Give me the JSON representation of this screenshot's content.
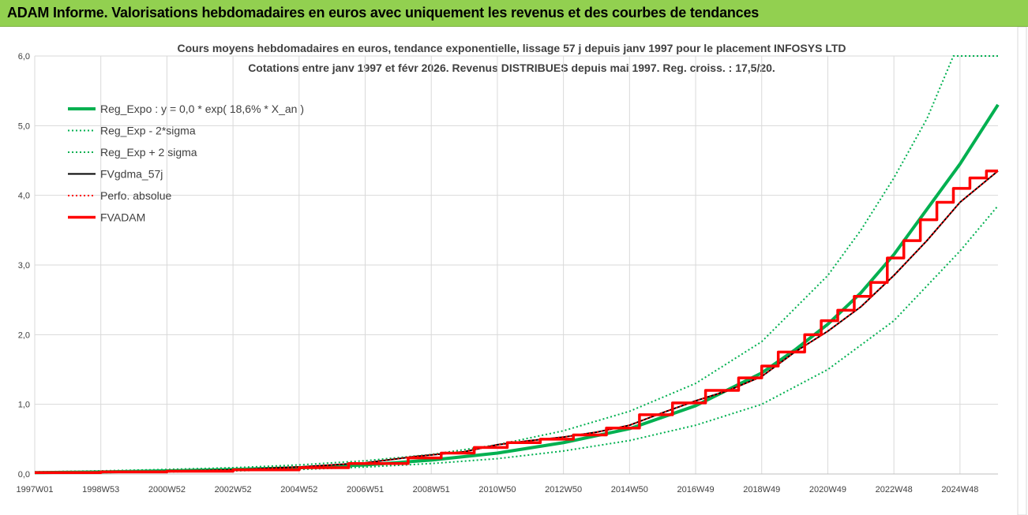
{
  "banner": {
    "title": "ADAM Informe. Valorisations hebdomadaires en euros avec uniquement les revenus et des courbes de tendances",
    "color": "#92d050"
  },
  "chart_data": {
    "type": "line",
    "title": "Cours moyens hebdomadaires en euros, tendance exponentielle, lissage 57 j depuis janv 1997 pour le placement INFOSYS LTD",
    "subtitle": "Cotations entre janv 1997 et févr 2026. Revenus DISTRIBUES depuis mai 1997. Reg. croiss. : 17,5/20.",
    "xlabel": "",
    "ylabel": "",
    "ylim": [
      0,
      6
    ],
    "yticks": [
      "0,0",
      "1,0",
      "2,0",
      "3,0",
      "4,0",
      "5,0",
      "6,0"
    ],
    "xlim": [
      1997.0,
      2026.15
    ],
    "xticks": [
      {
        "label": "1997W01",
        "x": 1997.0
      },
      {
        "label": "1998W53",
        "x": 1999.0
      },
      {
        "label": "2000W52",
        "x": 2001.0
      },
      {
        "label": "2002W52",
        "x": 2003.0
      },
      {
        "label": "2004W52",
        "x": 2005.0
      },
      {
        "label": "2006W51",
        "x": 2007.0
      },
      {
        "label": "2008W51",
        "x": 2009.0
      },
      {
        "label": "2010W50",
        "x": 2011.0
      },
      {
        "label": "2012W50",
        "x": 2013.0
      },
      {
        "label": "2014W50",
        "x": 2015.0
      },
      {
        "label": "2016W49",
        "x": 2017.0
      },
      {
        "label": "2018W49",
        "x": 2019.0
      },
      {
        "label": "2020W49",
        "x": 2021.0
      },
      {
        "label": "2022W48",
        "x": 2023.0
      },
      {
        "label": "2024W48",
        "x": 2025.0
      }
    ],
    "grid": true,
    "legend_position": "top-left",
    "series": [
      {
        "name": "Reg_Expo : y = 0,0 * exp( 18,6% * X_an )",
        "color": "#00b050",
        "style": "solid-thick",
        "x": [
          1997,
          1999,
          2001,
          2003,
          2005,
          2007,
          2009,
          2011,
          2013,
          2015,
          2017,
          2019,
          2020,
          2021,
          2022,
          2023,
          2024,
          2025,
          2026.15
        ],
        "y": [
          0.02,
          0.03,
          0.045,
          0.065,
          0.09,
          0.13,
          0.2,
          0.3,
          0.45,
          0.65,
          0.98,
          1.45,
          1.78,
          2.15,
          2.6,
          3.15,
          3.8,
          4.45,
          5.3
        ]
      },
      {
        "name": "Reg_Exp - 2*sigma",
        "color": "#00b050",
        "style": "dotted",
        "x": [
          1997,
          1999,
          2001,
          2003,
          2005,
          2007,
          2009,
          2011,
          2013,
          2015,
          2017,
          2019,
          2021,
          2023,
          2024,
          2025,
          2026.15
        ],
        "y": [
          0.015,
          0.02,
          0.03,
          0.045,
          0.065,
          0.1,
          0.15,
          0.22,
          0.33,
          0.48,
          0.7,
          1.0,
          1.5,
          2.2,
          2.7,
          3.2,
          3.85
        ]
      },
      {
        "name": "Reg_Exp + 2 sigma",
        "color": "#00b050",
        "style": "dotted",
        "x": [
          1997,
          1999,
          2001,
          2003,
          2005,
          2007,
          2009,
          2011,
          2013,
          2015,
          2017,
          2019,
          2021,
          2022,
          2023,
          2024,
          2024.8,
          2026.15
        ],
        "y": [
          0.03,
          0.045,
          0.065,
          0.09,
          0.13,
          0.19,
          0.28,
          0.42,
          0.62,
          0.9,
          1.3,
          1.9,
          2.85,
          3.5,
          4.25,
          5.1,
          6.0,
          6.0
        ]
      },
      {
        "name": "FVgdma_57j",
        "color": "#000000",
        "style": "solid",
        "x": [
          1997,
          1999,
          2001,
          2003,
          2005,
          2007,
          2008.5,
          2010,
          2011,
          2012,
          2013,
          2014,
          2015,
          2016,
          2017,
          2018,
          2019,
          2020,
          2021,
          2022,
          2023,
          2024,
          2025,
          2026.15
        ],
        "y": [
          0.02,
          0.03,
          0.04,
          0.06,
          0.1,
          0.16,
          0.25,
          0.32,
          0.42,
          0.48,
          0.53,
          0.6,
          0.7,
          0.88,
          1.05,
          1.2,
          1.4,
          1.75,
          2.05,
          2.4,
          2.85,
          3.35,
          3.9,
          4.35
        ]
      },
      {
        "name": "Perfo. absolue",
        "color": "#ff0000",
        "style": "dotted",
        "x": [
          1997,
          1999,
          2001,
          2003,
          2005,
          2007,
          2008.5,
          2010,
          2011,
          2012,
          2013,
          2014,
          2015,
          2016,
          2017,
          2018,
          2019,
          2020,
          2021,
          2022,
          2023,
          2024,
          2025,
          2026.15
        ],
        "y": [
          0.02,
          0.03,
          0.04,
          0.06,
          0.1,
          0.16,
          0.25,
          0.32,
          0.42,
          0.48,
          0.53,
          0.6,
          0.7,
          0.88,
          1.05,
          1.2,
          1.4,
          1.75,
          2.05,
          2.4,
          2.85,
          3.35,
          3.9,
          4.35
        ]
      },
      {
        "name": "FVADAM",
        "color": "#ff0000",
        "style": "step-thick",
        "x": [
          1997,
          1999,
          2001,
          2003,
          2005,
          2006.5,
          2008.3,
          2009.3,
          2010.3,
          2011.3,
          2012.3,
          2013.3,
          2014.3,
          2015.3,
          2016.3,
          2017.3,
          2018.3,
          2019.0,
          2019.5,
          2020.3,
          2020.8,
          2021.3,
          2021.8,
          2022.3,
          2022.8,
          2023.3,
          2023.8,
          2024.3,
          2024.8,
          2025.3,
          2025.8,
          2026.15
        ],
        "y": [
          0.02,
          0.03,
          0.04,
          0.06,
          0.09,
          0.15,
          0.23,
          0.3,
          0.38,
          0.45,
          0.5,
          0.56,
          0.66,
          0.85,
          1.02,
          1.2,
          1.38,
          1.55,
          1.75,
          2.0,
          2.2,
          2.35,
          2.55,
          2.75,
          3.1,
          3.35,
          3.65,
          3.9,
          4.1,
          4.25,
          4.35,
          4.35
        ]
      }
    ]
  }
}
